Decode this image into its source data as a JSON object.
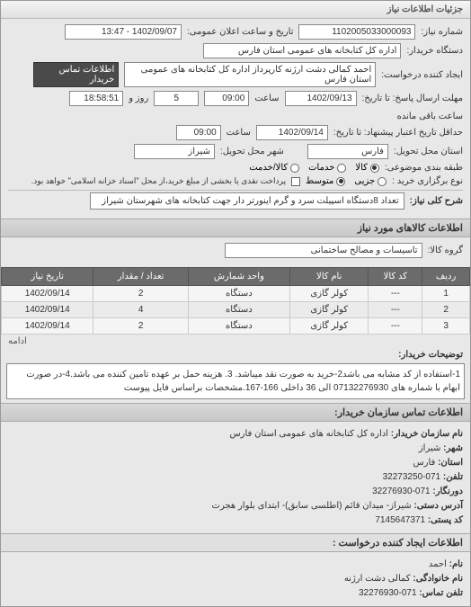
{
  "titlebar": "جزئیات اطلاعات نیاز",
  "form": {
    "req_no_label": "شماره نیاز:",
    "req_no": "1102005033000093",
    "announce_label": "تاریخ و ساعت اعلان عمومی:",
    "announce": "1402/09/07 - 13:47",
    "buyer_label": "دستگاه خریدار:",
    "buyer": "اداره کل کتابخانه های عمومی استان فارس",
    "creator_label": "ایجاد کننده درخواست:",
    "creator": "احمد  کمالی دشت ارژنه  کارپرداز اداره کل کتابخانه های عمومی استان فارس",
    "buyer_contact_btn": "اطلاعات تماس خریدار",
    "deadline_label": "مهلت ارسال پاسخ: تا تاریخ:",
    "deadline_date": "1402/09/13",
    "time_label": "ساعت",
    "deadline_time": "09:00",
    "days_label": "روز و",
    "days": "5",
    "remain_label": "ساعت باقی مانده",
    "remain_time": "18:58:51",
    "validity_label": "حداقل تاریخ اعتبار پیشنهاد: تا تاریخ:",
    "validity_date": "1402/09/14",
    "validity_time": "09:00",
    "province_label": "استان محل تحویل:",
    "province": "فارس",
    "city_label": "شهر محل تحویل:",
    "city": "شیراز",
    "category_label": "طبقه بندی موضوعی:",
    "cat_options": {
      "kala": "کالا",
      "khadamat": "خدمات",
      "both": "کالا/خدمت"
    },
    "priority_label": "نوع برگزاری خرید :",
    "pri_options": {
      "low": "جزیی",
      "mid": "متوسط"
    },
    "payment_note": "پرداخت نقدی یا بخشی از مبلغ خرید،از محل \"اسناد خزانه اسلامی\" خواهد بود.",
    "desc_label": "شرح کلی نیاز:",
    "desc": "تعداد 8دستگاه اسپیلت سرد و گرم اینورتر دار جهت کتابخانه های شهرستان شیراز"
  },
  "section_items": "اطلاعات کالاهای مورد نیاز",
  "group_label": "گروه کالا:",
  "group": "تاسیسات و مصالح ساختمانی",
  "table": {
    "headers": [
      "ردیف",
      "کد کالا",
      "نام کالا",
      "واحد شمارش",
      "تعداد / مقدار",
      "تاریخ نیاز"
    ],
    "rows": [
      [
        "1",
        "---",
        "کولر گازی",
        "دستگاه",
        "2",
        "1402/09/14"
      ],
      [
        "2",
        "---",
        "کولر گازی",
        "دستگاه",
        "4",
        "1402/09/14"
      ],
      [
        "3",
        "---",
        "کولر گازی",
        "دستگاه",
        "2",
        "1402/09/14"
      ]
    ],
    "more": "ادامه"
  },
  "notes_label": "توضیحات خریدار:",
  "notes": "1-استفاده از کد مشابه می باشد2-خرید به صورت نقد میباشد. 3. هزینه حمل بر عهده تامین کننده می باشد.4-در صورت ابهام با شماره های 07132276930 الی 36 داخلی 166-167.مشخصات براساس فایل پیوست",
  "section_contact": "اطلاعات تماس سازمان خریدار:",
  "contact": {
    "org_label": "نام سازمان خریدار:",
    "org": "اداره کل کتابخانه های عمومی استان فارس",
    "city_label": "شهر:",
    "city": "شیراز",
    "province_label": "استان:",
    "province": "فارس",
    "tel_label": "تلفن:",
    "tel": "071-32273250",
    "fax_label": "دورنگار:",
    "fax": "071-32276930",
    "addr_label": "آدرس دستی:",
    "addr": "شیراز- میدان قائم (اطلسی سابق)- ابتدای بلوار هجرت",
    "post_label": "کد پستی:",
    "post": "7145647371"
  },
  "section_requester": "اطلاعات ایجاد کننده درخواست :",
  "requester": {
    "name_label": "نام:",
    "name": "احمد",
    "lname_label": "نام خانوادگی:",
    "lname": "کمالی دشت ارژنه",
    "tel_label": "تلفن تماس:",
    "tel": "071-32276930"
  }
}
